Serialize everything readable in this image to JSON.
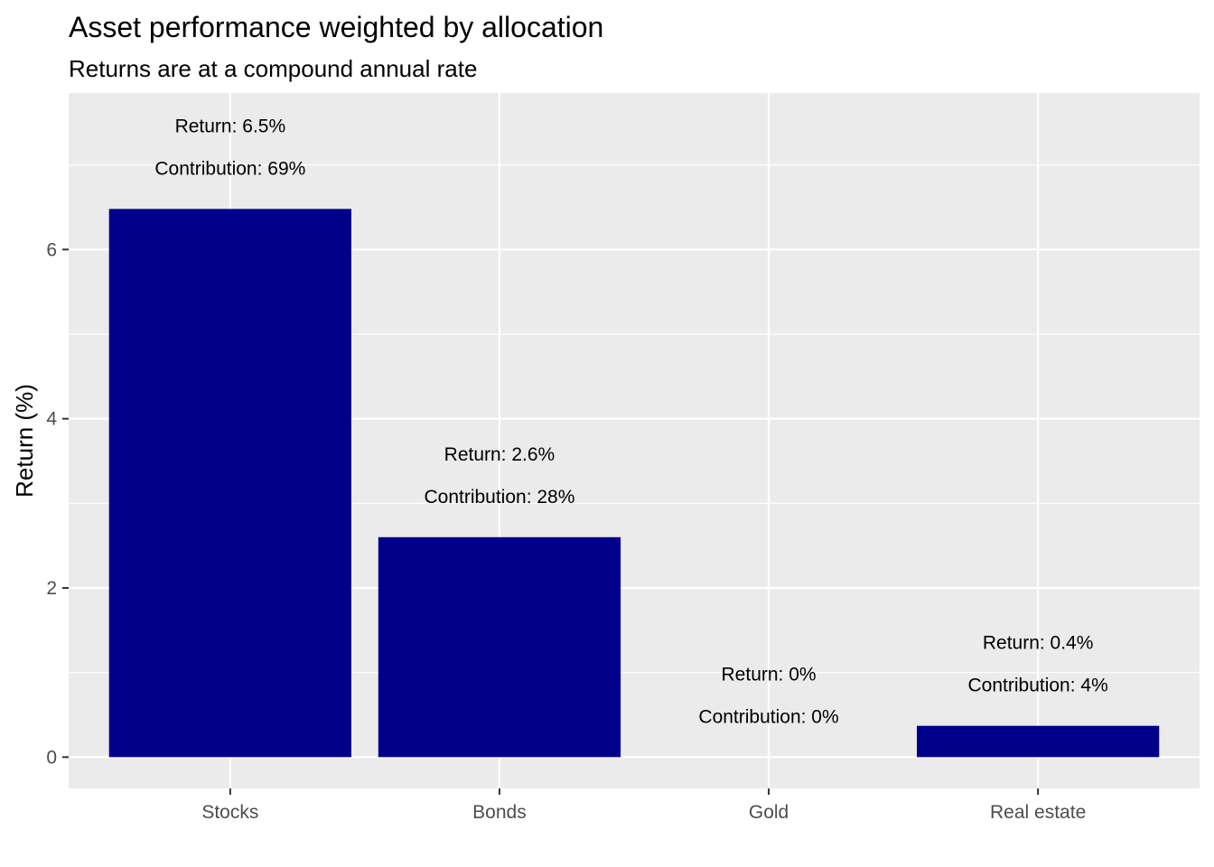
{
  "colors": {
    "panel": "#ebebeb",
    "grid": "#ffffff",
    "bar": "#00008b",
    "tick": "#333333"
  },
  "chart_data": {
    "type": "bar",
    "title": "Asset performance weighted by allocation",
    "subtitle": "Returns are at a compound annual rate",
    "xlabel": "",
    "ylabel": "Return (%)",
    "ylim": [
      -0.37,
      7.85
    ],
    "yticks": [
      0,
      2,
      4,
      6
    ],
    "categories": [
      "Stocks",
      "Bonds",
      "Gold",
      "Real estate"
    ],
    "values": [
      6.48,
      2.6,
      0,
      0.37
    ],
    "labels": [
      {
        "return": "Return: 6.5%",
        "contribution": "Contribution: 69%"
      },
      {
        "return": "Return: 2.6%",
        "contribution": "Contribution: 28%"
      },
      {
        "return": "Return: 0%",
        "contribution": "Contribution: 0%"
      },
      {
        "return": "Return: 0.4%",
        "contribution": "Contribution: 4%"
      }
    ],
    "grid": true,
    "legend": "none"
  }
}
